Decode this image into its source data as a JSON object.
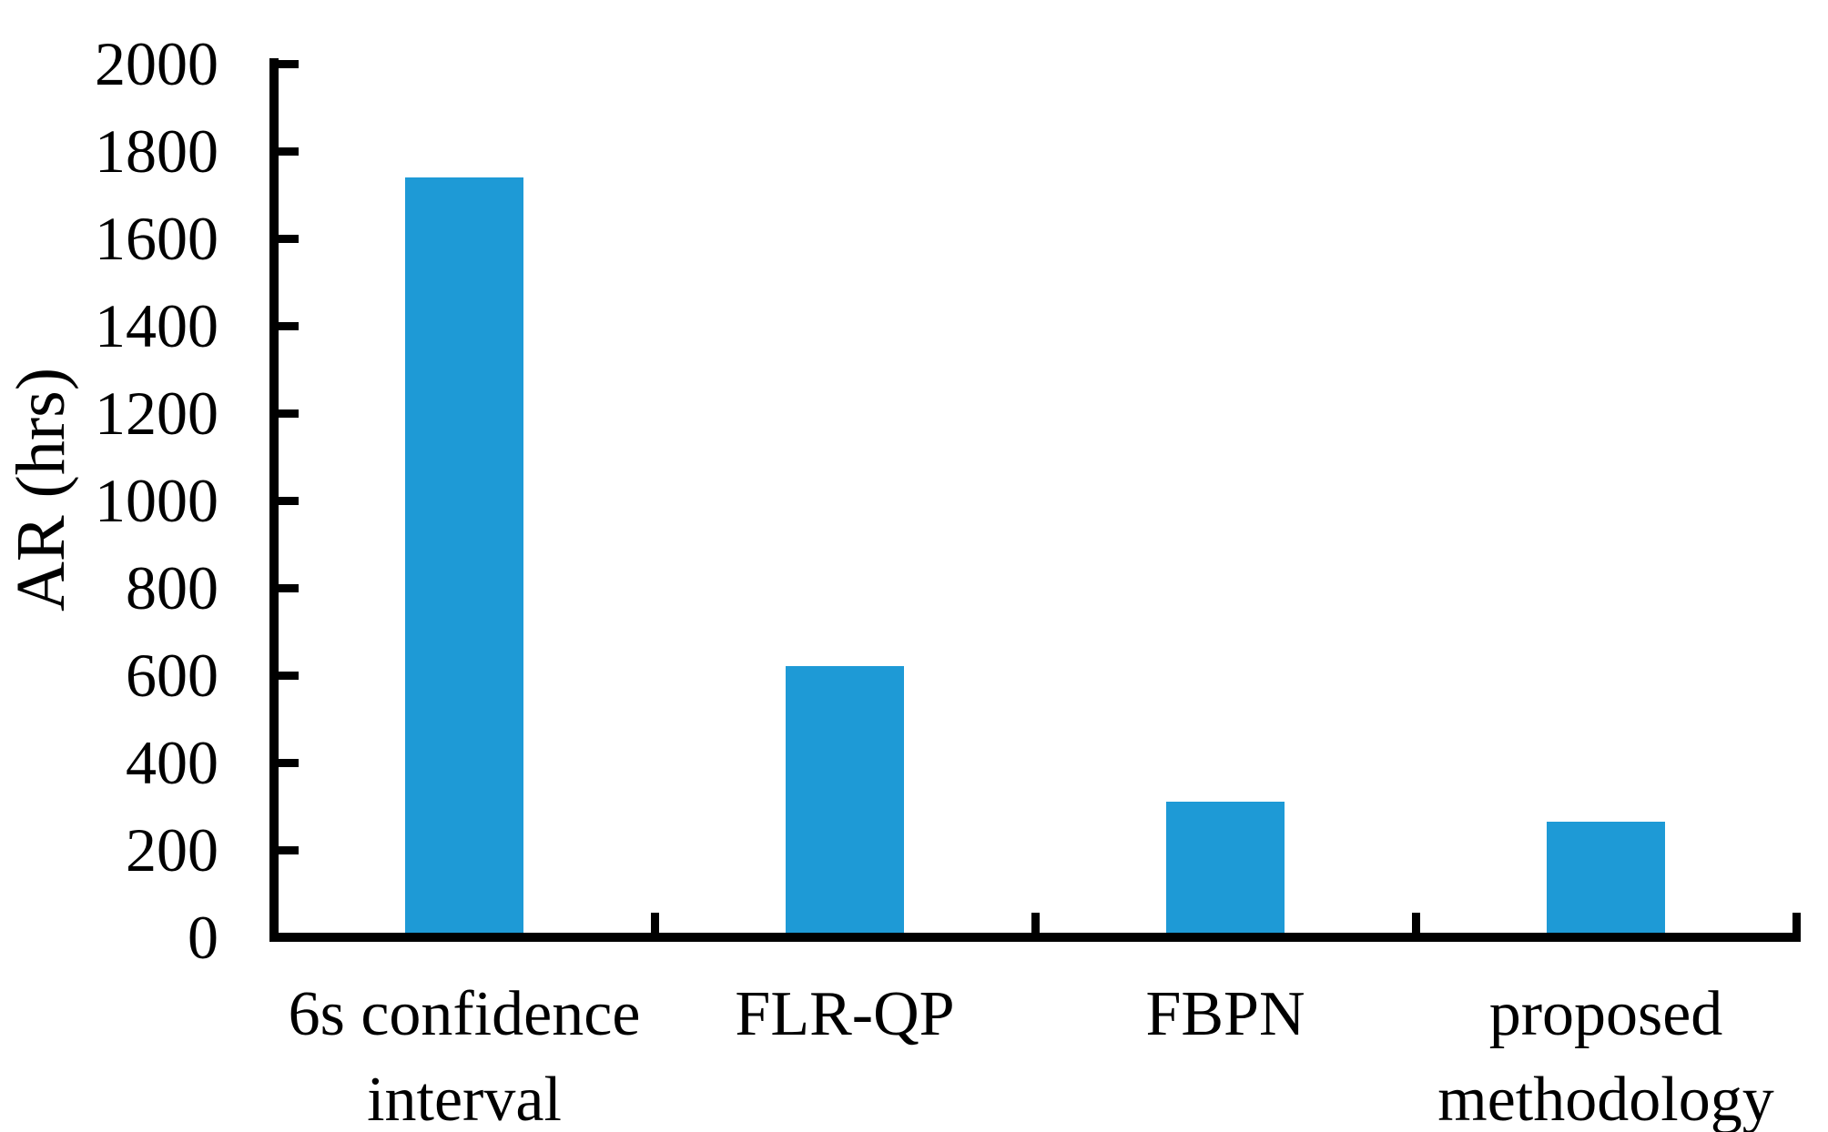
{
  "chart_data": {
    "type": "bar",
    "title": "",
    "ylabel": "AR (hrs)",
    "xlabel": "",
    "categories": [
      [
        "6s confidence",
        "interval"
      ],
      [
        "FLR-QP"
      ],
      [
        "FBPN"
      ],
      [
        "proposed",
        "methodology"
      ]
    ],
    "values": [
      1740,
      620,
      310,
      265
    ],
    "ylim": [
      0,
      2000
    ],
    "ytick_step": 200,
    "ytick_labels": [
      "0",
      "200",
      "400",
      "600",
      "800",
      "1000",
      "1200",
      "1400",
      "1600",
      "1800",
      "2000"
    ],
    "bar_color": "#1E9AD6",
    "axis_color": "#000000",
    "background_color": "#FFFFFF",
    "grid": false,
    "legend": null,
    "tick_direction": "inside"
  }
}
